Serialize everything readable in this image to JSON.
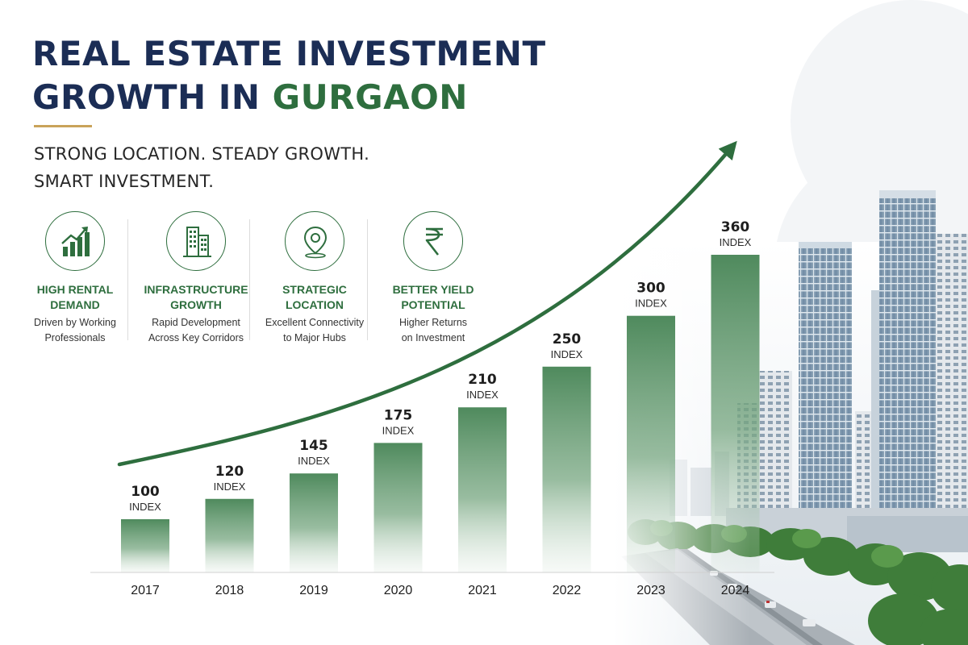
{
  "heading": {
    "line1": "REAL ESTATE INVESTMENT",
    "line2_prefix": "GROWTH IN ",
    "line2_accent": "GURGAON"
  },
  "tagline": {
    "line1": "STRONG LOCATION. STEADY GROWTH.",
    "line2": "SMART INVESTMENT."
  },
  "features": [
    {
      "icon": "bar-chart-up-icon",
      "title": [
        "HIGH RENTAL",
        "DEMAND"
      ],
      "desc": [
        "Driven by Working",
        "Professionals"
      ]
    },
    {
      "icon": "buildings-icon",
      "title": [
        "INFRASTRUCTURE",
        "GROWTH"
      ],
      "desc": [
        "Rapid Development",
        "Across Key Corridors"
      ]
    },
    {
      "icon": "location-pin-icon",
      "title": [
        "STRATEGIC",
        "LOCATION"
      ],
      "desc": [
        "Excellent Connectivity",
        "to Major Hubs"
      ]
    },
    {
      "icon": "rupee-icon",
      "title": [
        "BETTER YIELD",
        "POTENTIAL"
      ],
      "desc": [
        "Higher Returns",
        "on Investment"
      ]
    }
  ],
  "colors": {
    "navy": "#1b2d55",
    "green": "#2e6e3e",
    "bar": "#4f8a5d",
    "gold": "#c9a35a"
  },
  "chart_data": {
    "type": "bar",
    "categories": [
      "2017",
      "2018",
      "2019",
      "2020",
      "2021",
      "2022",
      "2023",
      "2024"
    ],
    "values": [
      100,
      120,
      145,
      175,
      210,
      250,
      300,
      360
    ],
    "value_unit": "INDEX",
    "ylim": [
      0,
      360
    ],
    "trend_arrow": true,
    "grid": false
  }
}
